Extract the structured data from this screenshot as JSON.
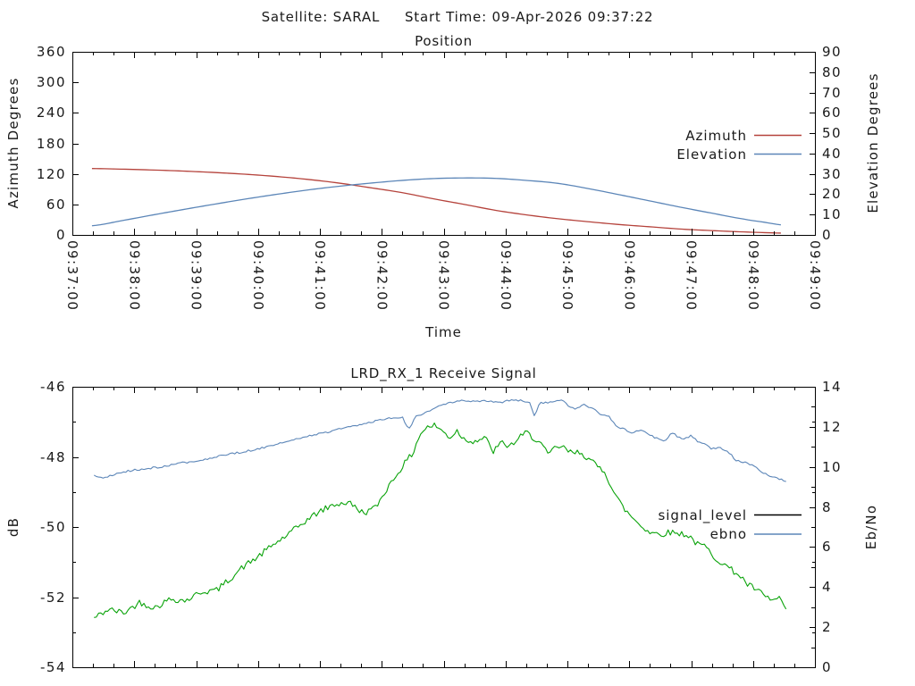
{
  "header": {
    "title": "Satellite: SARAL     Start Time: 09-Apr-2026 09:37:22"
  },
  "chart_data": [
    {
      "type": "line",
      "title": "Position",
      "xlabel": "Time",
      "ylabel": "Azimuth Degrees",
      "y2label": "Elevation Degrees",
      "x_unit": "seconds after 09:37:00",
      "xlim_seconds": [
        0,
        720
      ],
      "xtick_seconds": [
        0,
        60,
        120,
        180,
        240,
        300,
        360,
        420,
        480,
        540,
        600,
        660,
        720
      ],
      "xtick_labels": [
        "09:37:00",
        "09:38:00",
        "09:39:00",
        "09:40:00",
        "09:41:00",
        "09:42:00",
        "09:43:00",
        "09:44:00",
        "09:45:00",
        "09:46:00",
        "09:47:00",
        "09:48:00",
        "09:49:00"
      ],
      "x_minor_step": 20,
      "ylim": [
        0,
        360
      ],
      "yticks": [
        0,
        60,
        120,
        180,
        240,
        300,
        360
      ],
      "y2lim": [
        0,
        90
      ],
      "y2ticks": [
        0,
        10,
        20,
        30,
        40,
        50,
        60,
        70,
        80,
        90
      ],
      "grid": false,
      "legend_position": "inside-right",
      "legend": [
        {
          "name": "Azimuth",
          "color": "#b5433c"
        },
        {
          "name": "Elevation",
          "color": "#5c86b8"
        }
      ],
      "series": [
        {
          "name": "Azimuth",
          "axis": "y",
          "color": "#b5433c",
          "smooth": true,
          "t": [
            19,
            50,
            80,
            110,
            140,
            170,
            200,
            230,
            260,
            290,
            320,
            350,
            380,
            410,
            440,
            470,
            500,
            530,
            560,
            590,
            620,
            650,
            670,
            690
          ],
          "values": [
            130.5,
            129.2,
            127.5,
            125.3,
            122.5,
            119.0,
            114.5,
            108.8,
            101.5,
            92.5,
            83.0,
            71.0,
            60.0,
            48.5,
            39.5,
            32.0,
            26.0,
            20.5,
            16.0,
            11.5,
            8.5,
            6.0,
            4.6,
            3.5
          ]
        },
        {
          "name": "Elevation",
          "axis": "y2",
          "color": "#5c86b8",
          "smooth": true,
          "t": [
            19,
            50,
            80,
            110,
            140,
            170,
            200,
            230,
            260,
            290,
            320,
            350,
            380,
            410,
            440,
            470,
            500,
            530,
            560,
            590,
            620,
            650,
            670,
            690
          ],
          "values": [
            4.5,
            7.2,
            10.0,
            12.7,
            15.3,
            17.8,
            20.1,
            22.2,
            24.0,
            25.5,
            26.8,
            27.7,
            28.0,
            27.8,
            26.8,
            25.4,
            22.8,
            19.8,
            16.7,
            13.6,
            10.7,
            7.9,
            6.3,
            4.8
          ]
        }
      ]
    },
    {
      "type": "line",
      "title": "LRD_RX_1 Receive Signal",
      "xlabel": "",
      "ylabel": "dB",
      "y2label": "Eb/No",
      "x_unit": "seconds after 09:37:00",
      "xlim_seconds": [
        0,
        720
      ],
      "xtick_seconds": [
        0,
        60,
        120,
        180,
        240,
        300,
        360,
        420,
        480,
        540,
        600,
        660,
        720
      ],
      "xtick_labels": [],
      "x_minor_step": 20,
      "ylim": [
        -54,
        -46
      ],
      "yticks": [
        -46,
        -48,
        -50,
        -52,
        -54
      ],
      "y_minor_step": 1,
      "y2lim": [
        0,
        14
      ],
      "y2ticks": [
        0,
        2,
        4,
        6,
        8,
        10,
        12,
        14
      ],
      "y2_minor_step": 1,
      "grid": false,
      "noise_seed": 42,
      "legend_position": "inside-right",
      "legend": [
        {
          "name": "signal_level",
          "color": "#000000"
        },
        {
          "name": "ebno",
          "color": "#5c86b8"
        }
      ],
      "series": [
        {
          "name": "signal_level",
          "axis": "y",
          "color": "#0aa30a",
          "smooth": false,
          "noise_amplitude": 0.09,
          "t": [
            21,
            35,
            50,
            65,
            80,
            95,
            110,
            125,
            140,
            150,
            165,
            180,
            195,
            210,
            225,
            240,
            255,
            268,
            282,
            294,
            305,
            318,
            330,
            337,
            344,
            352,
            360,
            366,
            373,
            380,
            390,
            400,
            408,
            416,
            424,
            432,
            440,
            447,
            454,
            461,
            468,
            474,
            484,
            493,
            500,
            508,
            516,
            525,
            534,
            542,
            551,
            560,
            570,
            580,
            594,
            600,
            606,
            614,
            620,
            629,
            638,
            646,
            655,
            664,
            672,
            681,
            686,
            690,
            694
          ],
          "values": [
            -52.6,
            -52.35,
            -52.45,
            -52.15,
            -52.3,
            -52.05,
            -52.1,
            -51.85,
            -51.8,
            -51.55,
            -51.15,
            -50.85,
            -50.5,
            -50.2,
            -49.85,
            -49.55,
            -49.35,
            -49.3,
            -49.6,
            -49.45,
            -48.9,
            -48.35,
            -47.9,
            -47.35,
            -47.15,
            -47.1,
            -47.3,
            -47.45,
            -47.25,
            -47.5,
            -47.55,
            -47.45,
            -47.85,
            -47.6,
            -47.7,
            -47.5,
            -47.3,
            -47.45,
            -47.6,
            -47.95,
            -47.75,
            -47.7,
            -47.9,
            -47.85,
            -48.05,
            -48.25,
            -48.4,
            -49.0,
            -49.45,
            -49.7,
            -49.95,
            -50.15,
            -50.2,
            -50.15,
            -50.2,
            -50.3,
            -50.5,
            -50.55,
            -50.8,
            -51.0,
            -51.2,
            -51.35,
            -51.65,
            -51.8,
            -52.0,
            -52.1,
            -52.0,
            -52.25,
            -52.6
          ]
        },
        {
          "name": "ebno",
          "axis": "y2",
          "color": "#5c86b8",
          "smooth": false,
          "noise_amplitude": 0.05,
          "t": [
            21,
            30,
            40,
            55,
            70,
            85,
            100,
            120,
            135,
            150,
            165,
            180,
            195,
            210,
            225,
            240,
            255,
            270,
            285,
            300,
            312,
            320,
            326,
            333,
            342,
            352,
            362,
            375,
            390,
            405,
            415,
            425,
            435,
            443,
            448,
            453,
            465,
            475,
            487,
            495,
            505,
            512,
            520,
            528,
            535,
            542,
            550,
            556,
            565,
            574,
            582,
            588,
            594,
            600,
            606,
            612,
            620,
            629,
            638,
            643,
            652,
            660,
            669,
            675,
            684,
            694
          ],
          "values": [
            9.55,
            9.45,
            9.6,
            9.8,
            9.9,
            10.0,
            10.15,
            10.3,
            10.45,
            10.6,
            10.75,
            10.9,
            11.1,
            11.3,
            11.5,
            11.65,
            11.85,
            12.0,
            12.2,
            12.35,
            12.45,
            12.5,
            11.85,
            12.5,
            12.7,
            12.95,
            13.15,
            13.3,
            13.25,
            13.3,
            13.2,
            13.35,
            13.3,
            13.25,
            12.5,
            13.2,
            13.25,
            13.3,
            12.85,
            13.1,
            12.95,
            12.6,
            12.55,
            12.0,
            11.9,
            11.7,
            11.8,
            11.75,
            11.45,
            11.3,
            11.7,
            11.45,
            11.4,
            11.6,
            11.3,
            11.2,
            10.9,
            10.95,
            10.65,
            10.3,
            10.25,
            10.05,
            9.75,
            9.55,
            9.4,
            9.3
          ]
        }
      ]
    }
  ]
}
